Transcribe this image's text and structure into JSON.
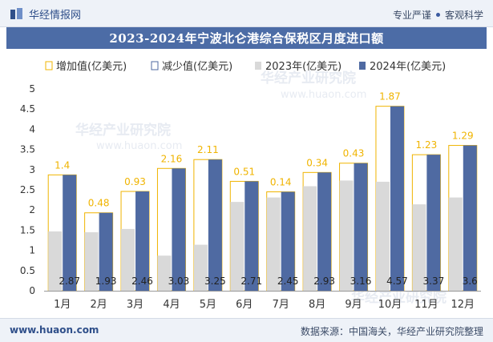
{
  "header": {
    "brand": "华经情报网",
    "slogan_left": "专业严谨",
    "slogan_right": "客观科学"
  },
  "title": "2023-2024年宁波北仑港综合保税区月度进口额",
  "watermark": "华经产业研究院",
  "watermark_url": "www.huaon.com",
  "footer": {
    "url": "www.huaon.com",
    "source": "数据来源：中国海关，华经产业研究院整理"
  },
  "colors": {
    "series_2023": "#d9d9d9",
    "series_2024": "#4f6aa2",
    "increase": "#f0b400",
    "decrease": "#4f6aa2",
    "title_bar": "#4c6ca6"
  },
  "chart_data": {
    "type": "bar",
    "categories": [
      "1月",
      "2月",
      "3月",
      "4月",
      "5月",
      "6月",
      "7月",
      "8月",
      "9月",
      "10月",
      "11月",
      "12月"
    ],
    "legend": [
      "增加值(亿美元)",
      "减少值(亿美元)",
      "2023年(亿美元)",
      "2024年(亿美元)"
    ],
    "series": [
      {
        "name": "2023年(亿美元)",
        "values": [
          1.47,
          1.45,
          1.53,
          0.87,
          1.14,
          2.2,
          2.31,
          2.59,
          2.73,
          2.7,
          2.14,
          2.31
        ]
      },
      {
        "name": "2024年(亿美元)",
        "values": [
          2.87,
          1.93,
          2.46,
          3.03,
          3.25,
          2.71,
          2.45,
          2.93,
          3.16,
          4.57,
          3.37,
          3.6
        ]
      }
    ],
    "value_labels_2024": [
      "2.87",
      "1.93",
      "2.46",
      "3.03",
      "3.25",
      "2.71",
      "2.45",
      "2.93",
      "3.16",
      "4.57",
      "3.37",
      "3.6"
    ],
    "diff_labels": [
      "1.4",
      "0.48",
      "0.93",
      "2.16",
      "2.11",
      "0.51",
      "0.14",
      "0.34",
      "0.43",
      "1.87",
      "1.23",
      "1.29"
    ],
    "y_ticks": [
      "0",
      "0.5",
      "1",
      "1.5",
      "2",
      "2.5",
      "3",
      "3.5",
      "4",
      "4.5",
      "5"
    ],
    "ylim": [
      0,
      5
    ]
  }
}
